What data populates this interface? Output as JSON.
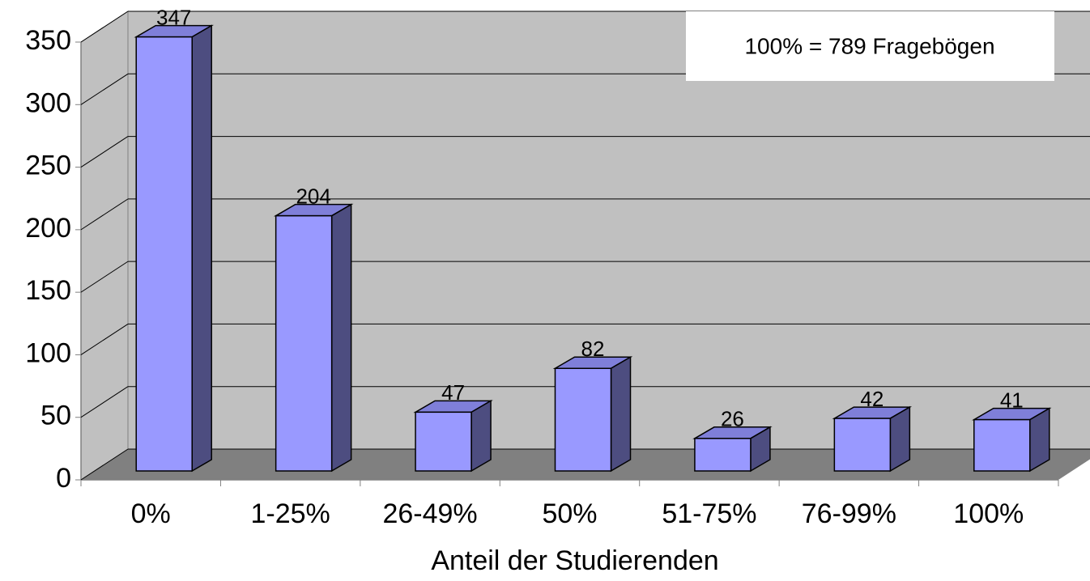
{
  "chart_data": {
    "type": "bar",
    "categories": [
      "0%",
      "1-25%",
      "26-49%",
      "50%",
      "51-75%",
      "76-99%",
      "100%"
    ],
    "values": [
      347,
      204,
      47,
      82,
      26,
      42,
      41
    ],
    "color": "#9999ff",
    "xlabel": "Anteil der Studierenden",
    "annotation": "100% = 789 Fragebögen",
    "ylim": [
      0,
      350
    ],
    "yticks": [
      0,
      50,
      100,
      150,
      200,
      250,
      300,
      350
    ],
    "grid": true
  }
}
